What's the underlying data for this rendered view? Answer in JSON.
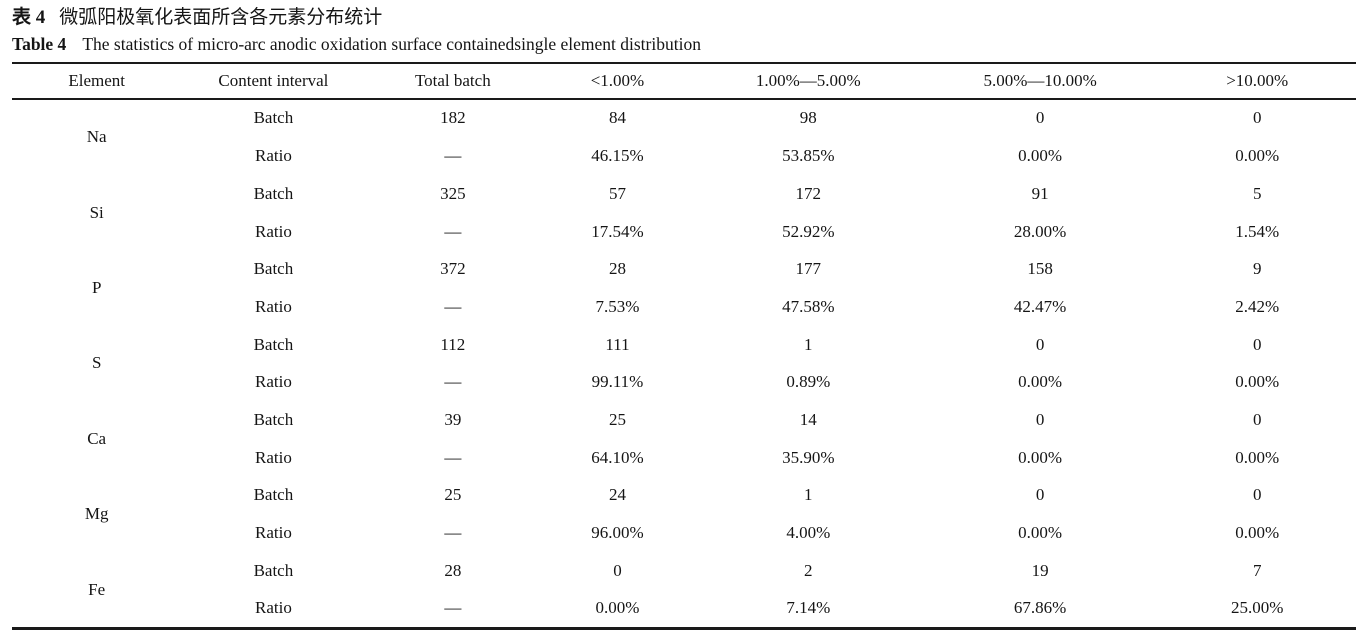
{
  "page": {
    "title_cn_label": "表 4",
    "title_cn": "微弧阳极氧化表面所含各元素分布统计",
    "title_en_label": "Table 4",
    "title_en": "The statistics of micro-arc anodic oxidation surface containedsingle element distribution"
  },
  "table": {
    "headers": [
      "Element",
      "Content interval",
      "Total batch",
      "<1.00%",
      "1.00%—5.00%",
      "5.00%—10.00%",
      ">10.00%"
    ],
    "sub_labels": {
      "batch": "Batch",
      "ratio": "Ratio"
    },
    "rows": [
      {
        "element": "Na",
        "batch": [
          "182",
          "84",
          "98",
          "0",
          "0"
        ],
        "ratio": [
          "—",
          "46.15%",
          "53.85%",
          "0.00%",
          "0.00%"
        ]
      },
      {
        "element": "Si",
        "batch": [
          "325",
          "57",
          "172",
          "91",
          "5"
        ],
        "ratio": [
          "—",
          "17.54%",
          "52.92%",
          "28.00%",
          "1.54%"
        ]
      },
      {
        "element": "P",
        "batch": [
          "372",
          "28",
          "177",
          "158",
          "9"
        ],
        "ratio": [
          "—",
          "7.53%",
          "47.58%",
          "42.47%",
          "2.42%"
        ]
      },
      {
        "element": "S",
        "batch": [
          "112",
          "111",
          "1",
          "0",
          "0"
        ],
        "ratio": [
          "—",
          "99.11%",
          "0.89%",
          "0.00%",
          "0.00%"
        ]
      },
      {
        "element": "Ca",
        "batch": [
          "39",
          "25",
          "14",
          "0",
          "0"
        ],
        "ratio": [
          "—",
          "64.10%",
          "35.90%",
          "0.00%",
          "0.00%"
        ]
      },
      {
        "element": "Mg",
        "batch": [
          "25",
          "24",
          "1",
          "0",
          "0"
        ],
        "ratio": [
          "—",
          "96.00%",
          "4.00%",
          "0.00%",
          "0.00%"
        ]
      },
      {
        "element": "Fe",
        "batch": [
          "28",
          "0",
          "2",
          "19",
          "7"
        ],
        "ratio": [
          "—",
          "0.00%",
          "7.14%",
          "67.86%",
          "25.00%"
        ]
      }
    ]
  },
  "chart_data": {
    "type": "table",
    "title": "Table 4 The statistics of micro-arc anodic oxidation surface containedsingle element distribution",
    "columns": [
      "Element",
      "Content interval",
      "Total batch",
      "<1.00%",
      "1.00%—5.00%",
      "5.00%—10.00%",
      ">10.00%"
    ],
    "rows": [
      [
        "Na",
        "Batch",
        "182",
        "84",
        "98",
        "0",
        "0"
      ],
      [
        "Na",
        "Ratio",
        "—",
        "46.15%",
        "53.85%",
        "0.00%",
        "0.00%"
      ],
      [
        "Si",
        "Batch",
        "325",
        "57",
        "172",
        "91",
        "5"
      ],
      [
        "Si",
        "Ratio",
        "—",
        "17.54%",
        "52.92%",
        "28.00%",
        "1.54%"
      ],
      [
        "P",
        "Batch",
        "372",
        "28",
        "177",
        "158",
        "9"
      ],
      [
        "P",
        "Ratio",
        "—",
        "7.53%",
        "47.58%",
        "42.47%",
        "2.42%"
      ],
      [
        "S",
        "Batch",
        "112",
        "111",
        "1",
        "0",
        "0"
      ],
      [
        "S",
        "Ratio",
        "—",
        "99.11%",
        "0.89%",
        "0.00%",
        "0.00%"
      ],
      [
        "Ca",
        "Batch",
        "39",
        "25",
        "14",
        "0",
        "0"
      ],
      [
        "Ca",
        "Ratio",
        "—",
        "64.10%",
        "35.90%",
        "0.00%",
        "0.00%"
      ],
      [
        "Mg",
        "Batch",
        "25",
        "24",
        "1",
        "0",
        "0"
      ],
      [
        "Mg",
        "Ratio",
        "—",
        "96.00%",
        "4.00%",
        "0.00%",
        "0.00%"
      ],
      [
        "Fe",
        "Batch",
        "28",
        "0",
        "2",
        "19",
        "7"
      ],
      [
        "Fe",
        "Ratio",
        "—",
        "0.00%",
        "7.14%",
        "67.86%",
        "25.00%"
      ]
    ]
  },
  "colors": {
    "text": "#151515",
    "rule": "#1a1a1a",
    "background": "#ffffff"
  }
}
